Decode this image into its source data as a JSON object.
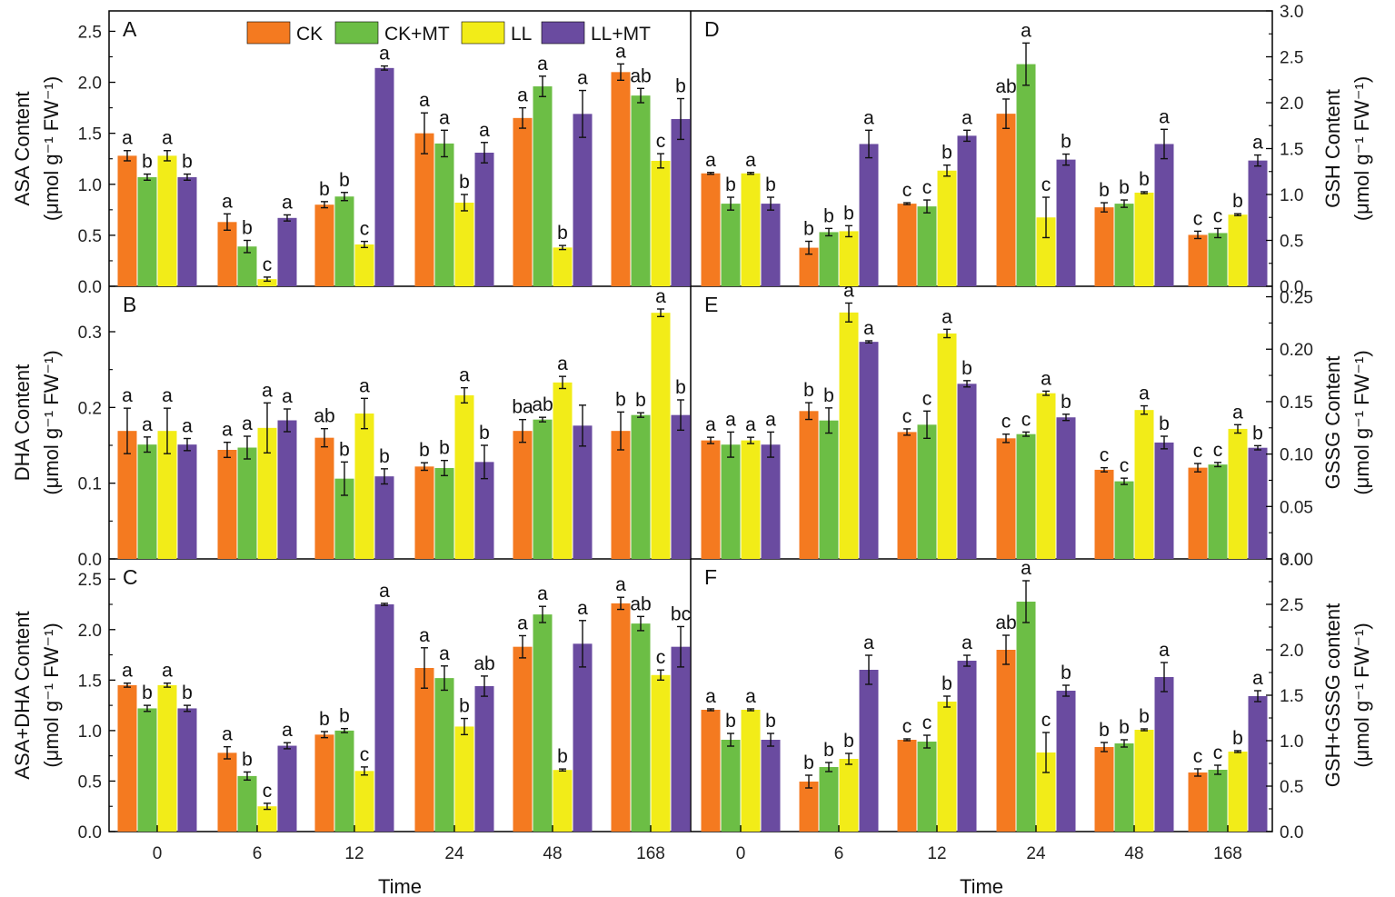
{
  "chart_data": {
    "type": "bar",
    "xlabel": "Time",
    "categories": [
      "0",
      "6",
      "12",
      "24",
      "48",
      "168"
    ],
    "legend": {
      "placement": "top",
      "entries": [
        {
          "name": "CK",
          "color": "#F47A20"
        },
        {
          "name": "CK+MT",
          "color": "#6CBE45"
        },
        {
          "name": "LL",
          "color": "#F2EC18"
        },
        {
          "name": "LL+MT",
          "color": "#6A4BA0"
        }
      ]
    },
    "panels": [
      {
        "letter": "A",
        "ylabel_line1": "ASA Content",
        "ylabel_line2": "(μmol g⁻¹ FW⁻¹)",
        "ylim": [
          0,
          2.7
        ],
        "yticks": [
          "0.0",
          "0.5",
          "1.0",
          "1.5",
          "2.0",
          "2.5"
        ],
        "axis_side": "left",
        "series": [
          {
            "name": "CK",
            "values": [
              1.28,
              0.63,
              0.8,
              1.5,
              1.65,
              2.1
            ],
            "errors": [
              0.05,
              0.08,
              0.03,
              0.2,
              0.1,
              0.08
            ],
            "labels": [
              "a",
              "a",
              "b",
              "a",
              "a",
              "a"
            ]
          },
          {
            "name": "CK+MT",
            "values": [
              1.07,
              0.39,
              0.88,
              1.4,
              1.96,
              1.87
            ],
            "errors": [
              0.03,
              0.06,
              0.04,
              0.13,
              0.1,
              0.07
            ],
            "labels": [
              "b",
              "b",
              "b",
              "a",
              "a",
              "ab"
            ]
          },
          {
            "name": "LL",
            "values": [
              1.28,
              0.07,
              0.41,
              0.82,
              0.38,
              1.23
            ],
            "errors": [
              0.05,
              0.02,
              0.03,
              0.08,
              0.02,
              0.07
            ],
            "labels": [
              "a",
              "c",
              "c",
              "b",
              "b",
              "c"
            ]
          },
          {
            "name": "LL+MT",
            "values": [
              1.07,
              0.67,
              2.14,
              1.31,
              1.69,
              1.64
            ],
            "errors": [
              0.03,
              0.03,
              0.02,
              0.1,
              0.23,
              0.2
            ],
            "labels": [
              "b",
              "a",
              "a",
              "a",
              "a",
              "b"
            ]
          }
        ]
      },
      {
        "letter": "B",
        "ylabel_line1": "DHA Content",
        "ylabel_line2": "(μmol g⁻¹ FW⁻¹)",
        "ylim": [
          0,
          0.36
        ],
        "yticks": [
          "0.0",
          "0.1",
          "0.2",
          "0.3"
        ],
        "axis_side": "left",
        "series": [
          {
            "name": "CK",
            "values": [
              0.169,
              0.144,
              0.16,
              0.122,
              0.169,
              0.169
            ],
            "errors": [
              0.03,
              0.01,
              0.012,
              0.005,
              0.015,
              0.025
            ],
            "labels": [
              "a",
              "a",
              "ab",
              "b",
              "ba",
              "b"
            ]
          },
          {
            "name": "CK+MT",
            "values": [
              0.151,
              0.147,
              0.106,
              0.12,
              0.184,
              0.19
            ],
            "errors": [
              0.01,
              0.015,
              0.022,
              0.01,
              0.003,
              0.003
            ],
            "labels": [
              "a",
              "a",
              "b",
              "b",
              "ab",
              "b"
            ]
          },
          {
            "name": "LL",
            "values": [
              0.169,
              0.173,
              0.192,
              0.216,
              0.233,
              0.325
            ],
            "errors": [
              0.03,
              0.033,
              0.02,
              0.01,
              0.008,
              0.005
            ],
            "labels": [
              "a",
              "a",
              "a",
              "a",
              "a",
              "a"
            ]
          },
          {
            "name": "LL+MT",
            "values": [
              0.151,
              0.183,
              0.109,
              0.128,
              0.176,
              0.19
            ],
            "errors": [
              0.008,
              0.015,
              0.01,
              0.022,
              0.027,
              0.02
            ],
            "labels": [
              "a",
              "a",
              "b",
              "b",
              "",
              "b"
            ]
          }
        ]
      },
      {
        "letter": "C",
        "ylabel_line1": "ASA+DHA  Content",
        "ylabel_line2": "(μmol g⁻¹ FW⁻¹)",
        "ylim": [
          0,
          2.7
        ],
        "yticks": [
          "0.0",
          "0.5",
          "1.0",
          "1.5",
          "2.0",
          "2.5"
        ],
        "axis_side": "left",
        "series": [
          {
            "name": "CK",
            "values": [
              1.45,
              0.78,
              0.96,
              1.62,
              1.83,
              2.26
            ],
            "errors": [
              0.02,
              0.06,
              0.03,
              0.2,
              0.11,
              0.06
            ],
            "labels": [
              "a",
              "a",
              "b",
              "a",
              "a",
              "a"
            ]
          },
          {
            "name": "CK+MT",
            "values": [
              1.22,
              0.55,
              1.0,
              1.52,
              2.15,
              2.06
            ],
            "errors": [
              0.03,
              0.04,
              0.02,
              0.12,
              0.08,
              0.07
            ],
            "labels": [
              "b",
              "b",
              "b",
              "a",
              "a",
              "ab"
            ]
          },
          {
            "name": "LL",
            "values": [
              1.45,
              0.25,
              0.6,
              1.04,
              0.61,
              1.55
            ],
            "errors": [
              0.02,
              0.03,
              0.04,
              0.08,
              0.01,
              0.05
            ],
            "labels": [
              "a",
              "c",
              "c",
              "b",
              "b",
              "c"
            ]
          },
          {
            "name": "LL+MT",
            "values": [
              1.22,
              0.85,
              2.25,
              1.44,
              1.86,
              1.83
            ],
            "errors": [
              0.03,
              0.03,
              0.01,
              0.1,
              0.23,
              0.2
            ],
            "labels": [
              "b",
              "a",
              "a",
              "ab",
              "a",
              "bc"
            ]
          }
        ]
      },
      {
        "letter": "D",
        "ylabel_line1": "GSH Content",
        "ylabel_line2": "(μmol g⁻¹ FW⁻¹)",
        "ylim": [
          0,
          3.0
        ],
        "yticks": [
          "0.0",
          "0.5",
          "1.0",
          "1.5",
          "2.0",
          "2.5",
          "3.0"
        ],
        "axis_side": "right",
        "series": [
          {
            "name": "CK",
            "values": [
              1.23,
              0.42,
              0.9,
              1.88,
              0.86,
              0.56
            ],
            "errors": [
              0.01,
              0.07,
              0.01,
              0.16,
              0.05,
              0.04
            ],
            "labels": [
              "a",
              "b",
              "c",
              "ab",
              "b",
              "c"
            ]
          },
          {
            "name": "CK+MT",
            "values": [
              0.9,
              0.59,
              0.87,
              2.42,
              0.9,
              0.58
            ],
            "errors": [
              0.07,
              0.04,
              0.07,
              0.23,
              0.04,
              0.05
            ],
            "labels": [
              "b",
              "b",
              "c",
              "a",
              "b",
              "c"
            ]
          },
          {
            "name": "LL",
            "values": [
              1.23,
              0.6,
              1.26,
              0.75,
              1.02,
              0.78
            ],
            "errors": [
              0.01,
              0.06,
              0.06,
              0.22,
              0.01,
              0.01
            ],
            "labels": [
              "a",
              "b",
              "b",
              "c",
              "b",
              "b"
            ]
          },
          {
            "name": "LL+MT",
            "values": [
              0.9,
              1.55,
              1.64,
              1.38,
              1.55,
              1.37
            ],
            "errors": [
              0.07,
              0.15,
              0.06,
              0.06,
              0.16,
              0.06
            ],
            "labels": [
              "b",
              "a",
              "a",
              "b",
              "a",
              "a"
            ]
          }
        ]
      },
      {
        "letter": "E",
        "ylabel_line1": "GSSG Content",
        "ylabel_line2": "(μmol g⁻¹ FW⁻¹)",
        "ylim": [
          0,
          0.26
        ],
        "yticks": [
          "0.00",
          "0.05",
          "0.10",
          "0.15",
          "0.20",
          "0.25"
        ],
        "axis_side": "right",
        "series": [
          {
            "name": "CK",
            "values": [
              0.113,
              0.141,
              0.121,
              0.115,
              0.085,
              0.087
            ],
            "errors": [
              0.003,
              0.008,
              0.003,
              0.004,
              0.002,
              0.004
            ],
            "labels": [
              "a",
              "b",
              "c",
              "c",
              "c",
              "c"
            ]
          },
          {
            "name": "CK+MT",
            "values": [
              0.109,
              0.132,
              0.128,
              0.119,
              0.074,
              0.09
            ],
            "errors": [
              0.012,
              0.012,
              0.013,
              0.002,
              0.003,
              0.002
            ],
            "labels": [
              "a",
              "b",
              "c",
              "c",
              "c",
              "c"
            ]
          },
          {
            "name": "LL",
            "values": [
              0.113,
              0.235,
              0.215,
              0.158,
              0.142,
              0.124
            ],
            "errors": [
              0.003,
              0.009,
              0.004,
              0.002,
              0.004,
              0.004
            ],
            "labels": [
              "a",
              "a",
              "a",
              "a",
              "a",
              "a"
            ]
          },
          {
            "name": "LL+MT",
            "values": [
              0.109,
              0.207,
              0.167,
              0.135,
              0.111,
              0.106
            ],
            "errors": [
              0.012,
              0.001,
              0.003,
              0.003,
              0.006,
              0.002
            ],
            "labels": [
              "a",
              "a",
              "b",
              "b",
              "b",
              "b"
            ]
          }
        ]
      },
      {
        "letter": "F",
        "ylabel_line1": "GSH+GSSG content",
        "ylabel_line2": "(μmol g⁻¹ FW⁻¹)",
        "ylim": [
          0,
          3.0
        ],
        "yticks": [
          "0.0",
          "0.5",
          "1.0",
          "1.5",
          "2.0",
          "2.5",
          "3.0"
        ],
        "axis_side": "right",
        "series": [
          {
            "name": "CK",
            "values": [
              1.34,
              0.55,
              1.01,
              2.0,
              0.93,
              0.65
            ],
            "errors": [
              0.01,
              0.07,
              0.01,
              0.16,
              0.05,
              0.04
            ],
            "labels": [
              "a",
              "b",
              "c",
              "ab",
              "b",
              "c"
            ]
          },
          {
            "name": "CK+MT",
            "values": [
              1.01,
              0.71,
              0.99,
              2.53,
              0.97,
              0.68
            ],
            "errors": [
              0.07,
              0.05,
              0.07,
              0.23,
              0.04,
              0.05
            ],
            "labels": [
              "b",
              "b",
              "c",
              "a",
              "b",
              "c"
            ]
          },
          {
            "name": "LL",
            "values": [
              1.34,
              0.8,
              1.43,
              0.87,
              1.12,
              0.88
            ],
            "errors": [
              0.01,
              0.06,
              0.06,
              0.22,
              0.01,
              0.01
            ],
            "labels": [
              "a",
              "b",
              "b",
              "c",
              "b",
              "b"
            ]
          },
          {
            "name": "LL+MT",
            "values": [
              1.01,
              1.78,
              1.88,
              1.55,
              1.7,
              1.49
            ],
            "errors": [
              0.07,
              0.16,
              0.06,
              0.06,
              0.16,
              0.06
            ],
            "labels": [
              "b",
              "a",
              "a",
              "b",
              "a",
              "a"
            ]
          }
        ]
      }
    ]
  }
}
